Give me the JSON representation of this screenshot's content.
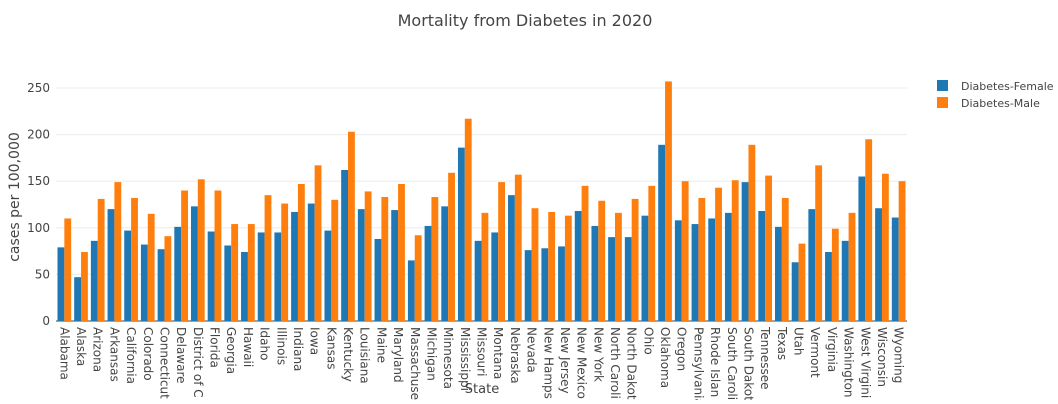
{
  "chart_data": {
    "type": "bar",
    "title": "Mortality from Diabetes in 2020",
    "xlabel": "State",
    "ylabel": "cases per 100,000",
    "ylim": [
      0,
      280
    ],
    "yticks": [
      0,
      50,
      100,
      150,
      200,
      250
    ],
    "grid": true,
    "legend_position": "top-right",
    "colors": {
      "female": "#1f77b4",
      "male": "#ff7f0e"
    },
    "categories": [
      "Alabama",
      "Alaska",
      "Arizona",
      "Arkansas",
      "California",
      "Colorado",
      "Connecticut",
      "Delaware",
      "District of C",
      "Florida",
      "Georgia",
      "Hawaii",
      "Idaho",
      "Illinois",
      "Indiana",
      "Iowa",
      "Kansas",
      "Kentucky",
      "Louisiana",
      "Maine",
      "Maryland",
      "Massachuse",
      "Michigan",
      "Minnesota",
      "Mississippi",
      "Missouri",
      "Montana",
      "Nebraska",
      "Nevada",
      "New Hamps",
      "New Jersey",
      "New Mexico",
      "New York",
      "North Caroli",
      "North Dakot",
      "Ohio",
      "Oklahoma",
      "Oregon",
      "Pennsylvania",
      "Rhode Islan",
      "South Caroli",
      "South Dakot",
      "Tennessee",
      "Texas",
      "Utah",
      "Vermont",
      "Virginia",
      "Washington",
      "West Virgini",
      "Wisconsin",
      "Wyoming"
    ],
    "series": [
      {
        "name": "Diabetes-Female",
        "values": [
          79,
          47,
          86,
          120,
          97,
          82,
          77,
          101,
          123,
          96,
          81,
          74,
          95,
          95,
          117,
          126,
          97,
          162,
          120,
          88,
          119,
          65,
          102,
          123,
          186,
          86,
          95,
          135,
          76,
          78,
          80,
          118,
          102,
          90,
          90,
          113,
          189,
          108,
          104,
          110,
          116,
          149,
          118,
          101,
          63,
          120,
          74,
          86,
          155,
          121,
          111
        ]
      },
      {
        "name": "Diabetes-Male",
        "values": [
          110,
          74,
          131,
          149,
          132,
          115,
          91,
          140,
          152,
          140,
          104,
          104,
          135,
          126,
          147,
          167,
          130,
          203,
          139,
          133,
          147,
          92,
          133,
          159,
          217,
          116,
          149,
          157,
          121,
          117,
          113,
          145,
          129,
          116,
          131,
          145,
          257,
          150,
          132,
          143,
          151,
          189,
          156,
          132,
          83,
          167,
          99,
          116,
          195,
          158,
          150
        ]
      }
    ]
  }
}
